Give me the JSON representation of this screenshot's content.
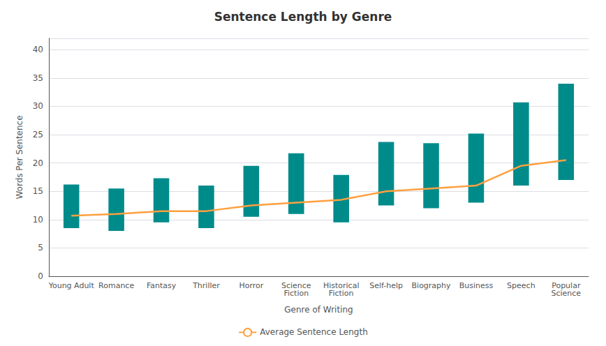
{
  "chart_data": {
    "type": "bar",
    "title": "Sentence Length by Genre",
    "xlabel": "Genre of Writing",
    "ylabel": "Words Per Sentence",
    "categories": [
      "Young Adult",
      "Romance",
      "Fantasy",
      "Thriller",
      "Horror",
      "Science\nFiction",
      "Historical\nFiction",
      "Self-help",
      "Biography",
      "Business",
      "Speech",
      "Popular\nScience"
    ],
    "series": [
      {
        "type": "bar",
        "color": "#008B8B",
        "bottom": [
          8.5,
          8.0,
          9.5,
          8.5,
          10.5,
          11.0,
          9.5,
          12.5,
          12.0,
          13.0,
          16.0,
          17.0
        ],
        "values": [
          16.2,
          15.5,
          17.3,
          16.0,
          19.5,
          21.7,
          17.9,
          23.7,
          23.5,
          25.2,
          30.7,
          34.0
        ]
      },
      {
        "type": "line",
        "name": "Average Sentence Length",
        "color": "#FFA040",
        "values": [
          10.7,
          11.0,
          11.5,
          11.5,
          12.5,
          13.0,
          13.5,
          15.0,
          15.5,
          16.0,
          19.5,
          20.5
        ]
      }
    ],
    "ylim": [
      0,
      42
    ],
    "yticks": [
      0,
      5,
      10,
      15,
      20,
      25,
      30,
      35,
      40
    ],
    "grid": true,
    "legend": "bottom"
  }
}
